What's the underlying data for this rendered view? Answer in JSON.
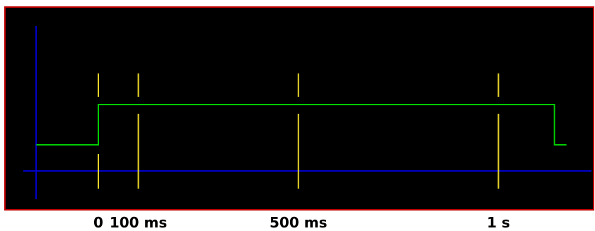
{
  "colors": {
    "background": "#000000",
    "border": "#c00000",
    "axis": "#0000c8",
    "signal": "#00cc00",
    "marker": "#e6d22a",
    "label": "#000000"
  },
  "markers": [
    {
      "label": "0",
      "time_ms": 0
    },
    {
      "label": "100 ms",
      "time_ms": 100
    },
    {
      "label": "500 ms",
      "time_ms": 500
    },
    {
      "label": "1 s",
      "time_ms": 1000
    }
  ],
  "signal": {
    "start_ms": -155,
    "rise_ms": 0,
    "fall_ms": 1140,
    "end_ms": 1170,
    "low_level": 0.5,
    "high_level": 1.0
  }
}
